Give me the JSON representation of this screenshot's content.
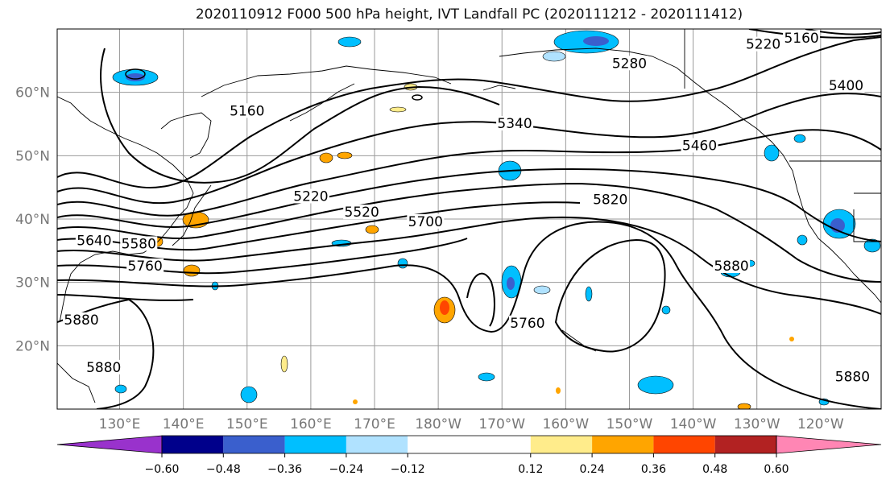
{
  "title": "2020110912 F000 500 hPa height, IVT Landfall PC (2020111212 - 2020111412)",
  "chart_data": {
    "type": "contour",
    "title": "2020110912 F000 500 hPa height, IVT Landfall PC (2020111212 - 2020111412)",
    "lat_range": [
      10,
      70
    ],
    "lon_ticks": [
      "130°E",
      "140°E",
      "150°E",
      "160°E",
      "170°E",
      "180°W",
      "170°W",
      "160°W",
      "150°W",
      "140°W",
      "130°W",
      "120°W"
    ],
    "lat_ticks": [
      "60°N",
      "50°N",
      "40°N",
      "30°N",
      "20°N"
    ],
    "grid": true,
    "height_contour_labels": [
      "5160",
      "5220",
      "5280",
      "5340",
      "5400",
      "5460",
      "5520",
      "5580",
      "5640",
      "5700",
      "5760",
      "5820",
      "5880"
    ],
    "contour_label_marks": [
      {
        "text": "5160",
        "lon": 150,
        "lat": 57
      },
      {
        "text": "5220",
        "lon": 160,
        "lat": 43.5
      },
      {
        "text": "5340",
        "lon": 192,
        "lat": 55
      },
      {
        "text": "5280",
        "lon": 210,
        "lat": 64.5
      },
      {
        "text": "5220",
        "lon": 231,
        "lat": 67.5
      },
      {
        "text": "5160",
        "lon": 237,
        "lat": 68.5
      },
      {
        "text": "5400",
        "lon": 244,
        "lat": 61
      },
      {
        "text": "5460",
        "lon": 221,
        "lat": 51.5
      },
      {
        "text": "5820",
        "lon": 207,
        "lat": 43
      },
      {
        "text": "5520",
        "lon": 168,
        "lat": 41
      },
      {
        "text": "5700",
        "lon": 178,
        "lat": 39.5
      },
      {
        "text": "5640",
        "lon": 126,
        "lat": 36.5
      },
      {
        "text": "5580",
        "lon": 133,
        "lat": 36
      },
      {
        "text": "5760",
        "lon": 134,
        "lat": 32.5
      },
      {
        "text": "5880",
        "lon": 124,
        "lat": 24
      },
      {
        "text": "5880",
        "lon": 127.5,
        "lat": 16.5
      },
      {
        "text": "5760",
        "lon": 194,
        "lat": 23.5
      },
      {
        "text": "5880",
        "lon": 226,
        "lat": 32.5
      },
      {
        "text": "5880",
        "lon": 245,
        "lat": 15
      }
    ],
    "colorbar": {
      "boundaries": [
        -0.72,
        -0.6,
        -0.48,
        -0.36,
        -0.24,
        -0.12,
        0.12,
        0.24,
        0.36,
        0.48,
        0.6,
        0.72
      ],
      "tick_labels": [
        "−0.60",
        "−0.48",
        "−0.36",
        "−0.24",
        "−0.12",
        "0.12",
        "0.24",
        "0.36",
        "0.48",
        "0.60"
      ],
      "colors": [
        "#9932cc",
        "#00008b",
        "#3a5fcd",
        "#00bfff",
        "#b0e2ff",
        "#ffffff",
        "#ffec8b",
        "#ffa500",
        "#ff4500",
        "#b22222",
        "#ff86b4"
      ],
      "extend": "both"
    }
  }
}
